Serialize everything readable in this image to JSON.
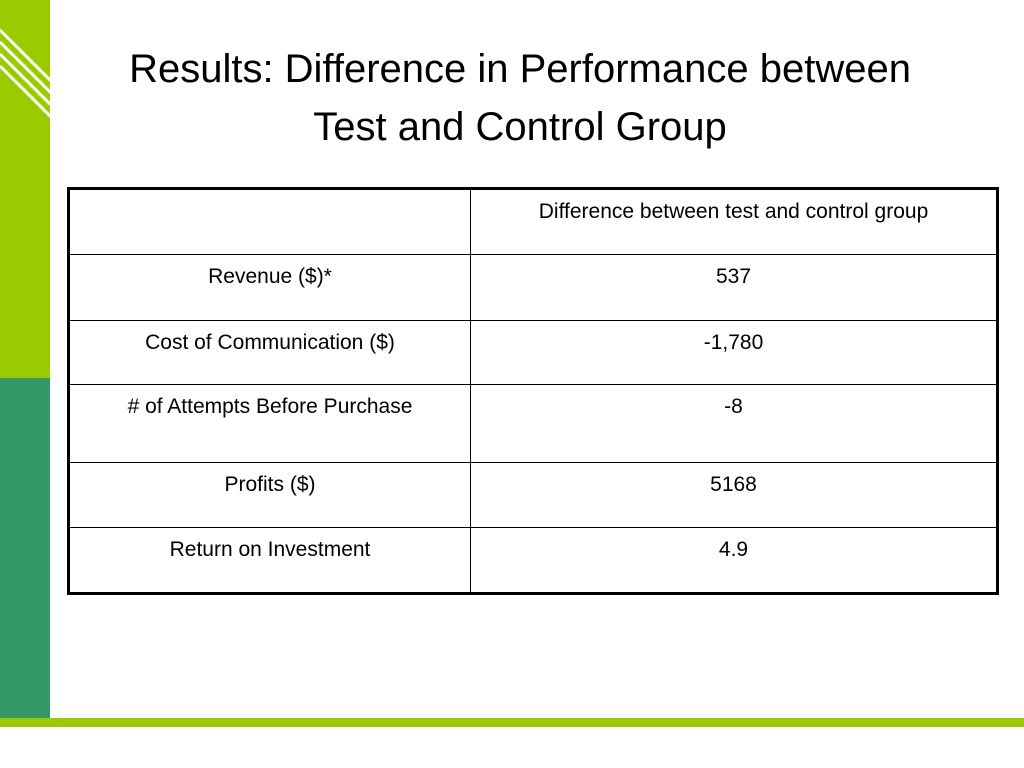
{
  "slide": {
    "title": "Results: Difference in Performance between\nTest and Control Group",
    "colors": {
      "accent_light": "#99cc00",
      "accent_dark": "#339966"
    }
  },
  "table": {
    "header": [
      "",
      "Difference between test and control group"
    ],
    "rows": [
      {
        "label": "Revenue ($)*",
        "value": "537"
      },
      {
        "label": "Cost of Communication ($)",
        "value": "-1,780"
      },
      {
        "label": "# of Attempts Before Purchase",
        "value": "-8"
      },
      {
        "label": "Profits ($)",
        "value": "5168"
      },
      {
        "label": "Return on Investment",
        "value": "4.9"
      }
    ]
  }
}
